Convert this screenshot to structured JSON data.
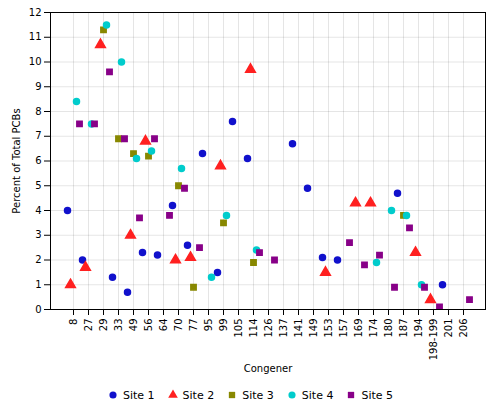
{
  "chart_data": {
    "type": "scatter",
    "xlabel": "Congener",
    "ylabel": "Percent of Total PCBs",
    "categories": [
      "8",
      "27",
      "29",
      "33",
      "49",
      "56",
      "64",
      "70",
      "77",
      "95",
      "99",
      "105",
      "114",
      "126",
      "137",
      "141",
      "149",
      "153",
      "157",
      "169",
      "174",
      "180",
      "187",
      "194",
      "198-199",
      "201",
      "206"
    ],
    "series": [
      {
        "name": "Site 1",
        "color": "#1111cc",
        "marker": "circle",
        "values": [
          4.0,
          2.0,
          null,
          1.3,
          0.7,
          2.3,
          2.2,
          4.2,
          2.6,
          6.3,
          1.5,
          7.6,
          6.1,
          null,
          null,
          6.7,
          4.9,
          2.1,
          2.0,
          null,
          null,
          null,
          4.7,
          null,
          null,
          1.0,
          null
        ]
      },
      {
        "name": "Site 2",
        "color": "#ff2020",
        "marker": "triangle",
        "values": [
          1.0,
          1.7,
          10.7,
          null,
          3.0,
          6.8,
          null,
          2.0,
          2.1,
          null,
          5.8,
          null,
          9.7,
          null,
          null,
          null,
          null,
          1.5,
          null,
          4.3,
          4.3,
          null,
          null,
          2.3,
          0.4,
          null,
          null
        ]
      },
      {
        "name": "Site 3",
        "color": "#888800",
        "marker": "square",
        "values": [
          null,
          null,
          11.3,
          6.9,
          6.3,
          6.2,
          null,
          5.0,
          0.9,
          null,
          3.5,
          null,
          1.9,
          null,
          null,
          null,
          null,
          null,
          null,
          null,
          null,
          null,
          3.8,
          null,
          null,
          null,
          null
        ]
      },
      {
        "name": "Site 4",
        "color": "#00cccc",
        "marker": "circle",
        "values": [
          8.4,
          7.5,
          11.5,
          10.0,
          6.1,
          6.4,
          null,
          5.7,
          null,
          1.3,
          3.8,
          null,
          2.4,
          null,
          null,
          null,
          null,
          null,
          null,
          null,
          1.9,
          4.0,
          3.8,
          1.0,
          null,
          null,
          null
        ]
      },
      {
        "name": "Site 5",
        "color": "#880088",
        "marker": "square",
        "values": [
          7.5,
          7.5,
          9.6,
          6.9,
          3.7,
          6.9,
          3.8,
          4.9,
          2.5,
          null,
          null,
          null,
          2.3,
          2.0,
          null,
          null,
          null,
          null,
          2.7,
          1.8,
          2.2,
          0.9,
          3.3,
          0.9,
          0.1,
          null,
          0.4
        ]
      }
    ],
    "ylim": [
      0,
      12
    ],
    "yticks": [
      0,
      1,
      2,
      3,
      4,
      5,
      6,
      7,
      8,
      9,
      10,
      11,
      12
    ],
    "grid": true,
    "legend": "bottom"
  }
}
